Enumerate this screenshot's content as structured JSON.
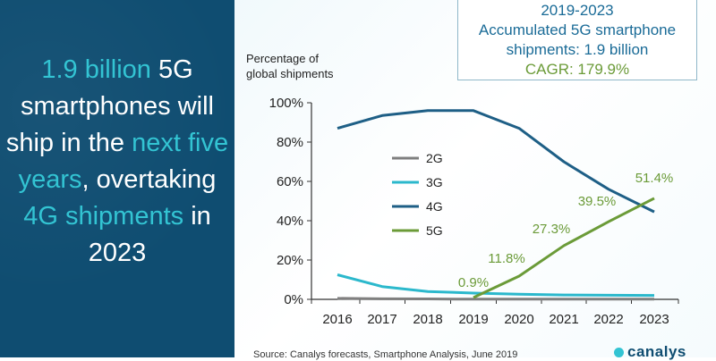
{
  "headline": {
    "part1": "1.9 billion",
    "part2": " 5G smartphones will ship in the ",
    "part3": "next five years",
    "part4": ", overtaking ",
    "part5": "4G shipments",
    "part6": " in 2023"
  },
  "stats_box": {
    "line1": "2019-2023",
    "line2": "Accumulated 5G smartphone",
    "line3": "shipments: 1.9 billion",
    "line4": "CAGR: 179.9%"
  },
  "source": "Source: Canalys forecasts, Smartphone Analysis, June 2019",
  "logo": {
    "name": "canalys"
  },
  "colors": {
    "panel": "#0f4d71",
    "highlight": "#33c4d3",
    "2G": "#7f7f7f",
    "3G": "#2bb8cc",
    "4G": "#1e5f86",
    "5G": "#6b9b38"
  },
  "chart_data": {
    "type": "line",
    "ylabel_lines": [
      "Percentage of",
      "global shipments"
    ],
    "xlabel": "",
    "categories": [
      "2016",
      "2017",
      "2018",
      "2019",
      "2020",
      "2021",
      "2022",
      "2023"
    ],
    "yticks": [
      "0%",
      "20%",
      "40%",
      "60%",
      "80%",
      "100%"
    ],
    "ylim": [
      0,
      100
    ],
    "grid": false,
    "legend_position": "center-left",
    "series": [
      {
        "name": "2G",
        "x": [
          "2016",
          "2017",
          "2018",
          "2019",
          "2020",
          "2021",
          "2022",
          "2023"
        ],
        "values": [
          0.5,
          0.3,
          0.2,
          0.1,
          0.1,
          0.1,
          0.1,
          0.1
        ]
      },
      {
        "name": "3G",
        "x": [
          "2016",
          "2017",
          "2018",
          "2019",
          "2020",
          "2021",
          "2022",
          "2023"
        ],
        "values": [
          12.5,
          6.5,
          4.0,
          3.2,
          2.6,
          2.2,
          2.1,
          2.0
        ]
      },
      {
        "name": "4G",
        "x": [
          "2016",
          "2017",
          "2018",
          "2019",
          "2020",
          "2021",
          "2022",
          "2023"
        ],
        "values": [
          87,
          93.5,
          96,
          96,
          87,
          70,
          56,
          44.5
        ]
      },
      {
        "name": "5G",
        "x": [
          "2019",
          "2020",
          "2021",
          "2022",
          "2023"
        ],
        "values": [
          0.9,
          11.8,
          27.3,
          39.5,
          51.4
        ]
      }
    ],
    "data_labels": [
      "0.9%",
      "11.8%",
      "27.3%",
      "39.5%",
      "51.4%"
    ]
  }
}
